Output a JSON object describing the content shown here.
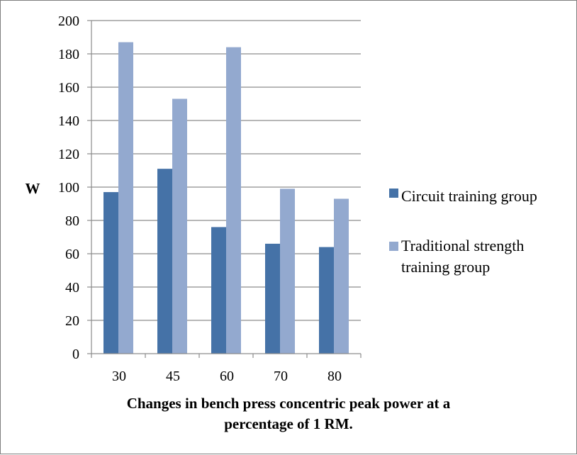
{
  "chart_data": {
    "type": "bar",
    "title": "",
    "ylabel": "W",
    "xlabel_lines": [
      "Changes in bench press concentric peak power at a",
      "percentage of 1 RM."
    ],
    "categories": [
      "30",
      "45",
      "60",
      "70",
      "80"
    ],
    "ylim": [
      0,
      200
    ],
    "yticks": [
      0,
      20,
      40,
      60,
      80,
      100,
      120,
      140,
      160,
      180,
      200
    ],
    "grid": true,
    "legend_position": "right",
    "series": [
      {
        "name": "Circuit training group",
        "color": "#4572A7",
        "values": [
          97,
          111,
          76,
          66,
          64
        ]
      },
      {
        "name_lines": [
          "Traditional strength",
          "training group"
        ],
        "color": "#93A9CF",
        "values": [
          187,
          153,
          184,
          99,
          93
        ]
      }
    ]
  }
}
